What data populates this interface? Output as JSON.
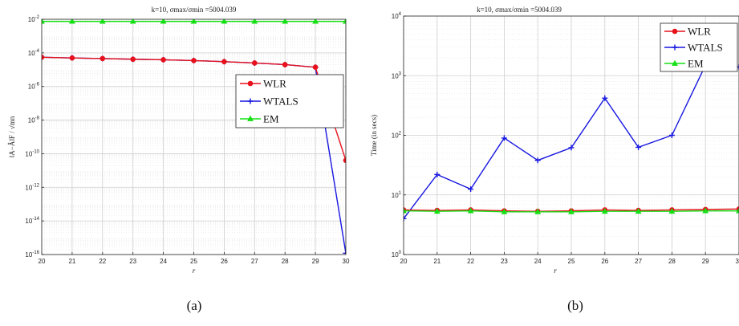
{
  "chart_data": [
    {
      "type": "line",
      "title": "k=10, σmax/σmin =5004.039",
      "xlabel": "r",
      "ylabel": "‖A−Â‖F / √mn",
      "yscale": "log",
      "xlim": [
        20,
        30
      ],
      "ylim": [
        1e-16,
        0.01
      ],
      "x": [
        20,
        21,
        22,
        23,
        24,
        25,
        26,
        27,
        28,
        29,
        30
      ],
      "xticks": [
        "20",
        "21",
        "22",
        "23",
        "24",
        "25",
        "26",
        "27",
        "28",
        "29",
        "30"
      ],
      "yticks": [
        {
          "value": 1e-16,
          "base": "10",
          "exp": "-16"
        },
        {
          "value": 1e-14,
          "base": "10",
          "exp": "-14"
        },
        {
          "value": 1e-12,
          "base": "10",
          "exp": "-12"
        },
        {
          "value": 1e-10,
          "base": "10",
          "exp": "-10"
        },
        {
          "value": 1e-08,
          "base": "10",
          "exp": "-8"
        },
        {
          "value": 1e-06,
          "base": "10",
          "exp": "-6"
        },
        {
          "value": 0.0001,
          "base": "10",
          "exp": "-4"
        },
        {
          "value": 0.01,
          "base": "10",
          "exp": "-2"
        }
      ],
      "grid": true,
      "legend_position": "upper-right",
      "series": [
        {
          "name": "WLR",
          "color": "#e8111b",
          "marker": "circle",
          "values": [
            5.5e-05,
            5e-05,
            4.6e-05,
            4.2e-05,
            3.9e-05,
            3.5e-05,
            3e-05,
            2.5e-05,
            2e-05,
            1.4e-05,
            4e-11
          ]
        },
        {
          "name": "WTALS",
          "color": "#1616e0",
          "marker": "plus",
          "values": [
            5.5e-05,
            5e-05,
            4.6e-05,
            4.2e-05,
            3.9e-05,
            3.5e-05,
            3e-05,
            2.5e-05,
            2e-05,
            1.4e-05,
            1.2e-16
          ]
        },
        {
          "name": "EM",
          "color": "#15e015",
          "marker": "triangle",
          "values": [
            0.0075,
            0.0075,
            0.0075,
            0.0075,
            0.0075,
            0.0075,
            0.0075,
            0.0075,
            0.0075,
            0.0075,
            0.0075
          ]
        }
      ],
      "caption": "(a)"
    },
    {
      "type": "line",
      "title": "k=10, σmax/σmin =5004.039",
      "xlabel": "r",
      "ylabel": "Time (in secs)",
      "yscale": "log",
      "xlim": [
        20,
        30
      ],
      "ylim": [
        1,
        10000
      ],
      "x": [
        20,
        21,
        22,
        23,
        24,
        25,
        26,
        27,
        28,
        29,
        30
      ],
      "xticks": [
        "20",
        "21",
        "22",
        "23",
        "24",
        "25",
        "26",
        "27",
        "28",
        "29",
        "30"
      ],
      "yticks": [
        {
          "value": 1,
          "base": "10",
          "exp": "0"
        },
        {
          "value": 10,
          "base": "10",
          "exp": "1"
        },
        {
          "value": 100,
          "base": "10",
          "exp": "2"
        },
        {
          "value": 1000,
          "base": "10",
          "exp": "3"
        },
        {
          "value": 10000,
          "base": "10",
          "exp": "4"
        }
      ],
      "grid": true,
      "legend_position": "upper-right",
      "series": [
        {
          "name": "WLR",
          "color": "#e8111b",
          "marker": "circle",
          "values": [
            5.6,
            5.5,
            5.6,
            5.4,
            5.3,
            5.4,
            5.6,
            5.5,
            5.6,
            5.7,
            5.8
          ]
        },
        {
          "name": "WTALS",
          "color": "#1616e0",
          "marker": "plus",
          "values": [
            4.0,
            22,
            12.5,
            90,
            38,
            62,
            420,
            63,
            100,
            1500,
            1400
          ]
        },
        {
          "name": "EM",
          "color": "#15e015",
          "marker": "triangle",
          "values": [
            5.4,
            5.3,
            5.4,
            5.2,
            5.2,
            5.2,
            5.3,
            5.3,
            5.3,
            5.4,
            5.4
          ]
        }
      ],
      "caption": "(b)"
    }
  ]
}
